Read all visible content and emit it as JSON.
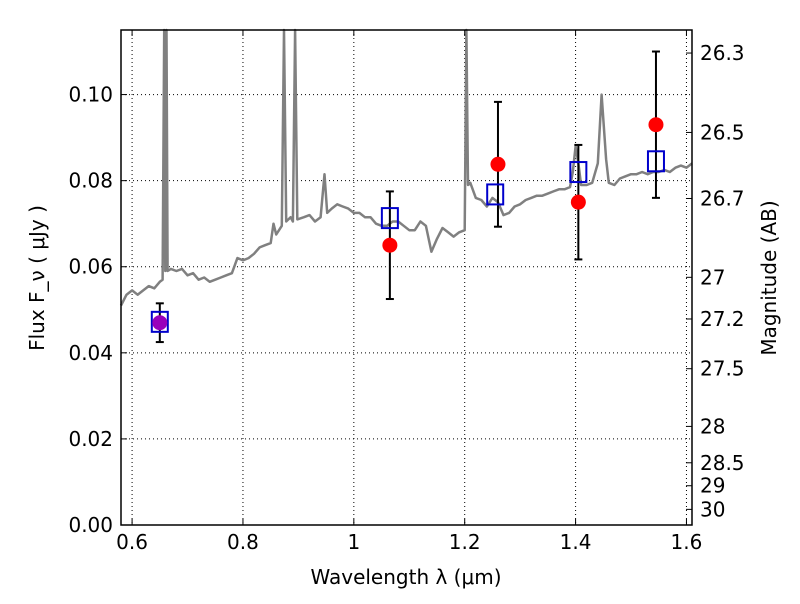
{
  "chart_data": {
    "type": "scatter",
    "xlabel": "Wavelength  λ (μm)",
    "ylabel": "Flux  F_ν  ( μJy )",
    "ylabel_right": "Magnitude (AB)",
    "xlim": [
      0.58,
      1.61
    ],
    "ylim": [
      0.0,
      0.115
    ],
    "x_ticks": [
      0.6,
      0.8,
      1.0,
      1.2,
      1.4,
      1.6
    ],
    "x_tick_labels": [
      "0.6",
      "0.8",
      "1",
      "1.2",
      "1.4",
      "1.6"
    ],
    "y_ticks": [
      0.0,
      0.02,
      0.04,
      0.06,
      0.08,
      0.1
    ],
    "y_tick_labels": [
      "0.00",
      "0.02",
      "0.04",
      "0.06",
      "0.08",
      "0.10"
    ],
    "right_ticks": [
      26.3,
      26.5,
      26.7,
      27.0,
      27.2,
      27.5,
      28.0,
      28.5,
      29.0,
      30.0
    ],
    "right_tick_labels": [
      "26.3",
      "26.5",
      "26.7",
      "27",
      "27.2",
      "27.5",
      "28",
      "28.5",
      "29",
      "30"
    ],
    "grid": true,
    "colors": {
      "observed": "#ff0000",
      "model": "#0000cc",
      "highlight": "#9900bb",
      "spectrum": "#808080",
      "errorbar": "#000000"
    },
    "observed_points": [
      {
        "x": 0.65,
        "y": 0.047,
        "err": 0.0045
      },
      {
        "x": 1.065,
        "y": 0.065,
        "err": 0.0125
      },
      {
        "x": 1.26,
        "y": 0.0838,
        "err": 0.0145
      },
      {
        "x": 1.405,
        "y": 0.075,
        "err": 0.0133
      },
      {
        "x": 1.545,
        "y": 0.093,
        "err": 0.017
      }
    ],
    "model_points": [
      {
        "x": 0.65,
        "y": 0.0472
      },
      {
        "x": 1.065,
        "y": 0.0713
      },
      {
        "x": 1.255,
        "y": 0.0768
      },
      {
        "x": 1.405,
        "y": 0.082
      },
      {
        "x": 1.545,
        "y": 0.0845
      }
    ],
    "spectrum": [
      [
        0.58,
        0.051
      ],
      [
        0.59,
        0.0535
      ],
      [
        0.6,
        0.0545
      ],
      [
        0.61,
        0.0535
      ],
      [
        0.62,
        0.0545
      ],
      [
        0.63,
        0.0555
      ],
      [
        0.64,
        0.055
      ],
      [
        0.65,
        0.0565
      ],
      [
        0.655,
        0.057
      ],
      [
        0.658,
        0.115
      ],
      [
        0.66,
        0.059
      ],
      [
        0.662,
        0.115
      ],
      [
        0.664,
        0.059
      ],
      [
        0.67,
        0.0595
      ],
      [
        0.68,
        0.059
      ],
      [
        0.69,
        0.0595
      ],
      [
        0.7,
        0.058
      ],
      [
        0.71,
        0.0585
      ],
      [
        0.72,
        0.057
      ],
      [
        0.73,
        0.0575
      ],
      [
        0.74,
        0.0565
      ],
      [
        0.75,
        0.057
      ],
      [
        0.76,
        0.0575
      ],
      [
        0.77,
        0.058
      ],
      [
        0.78,
        0.0585
      ],
      [
        0.79,
        0.062
      ],
      [
        0.8,
        0.0615
      ],
      [
        0.81,
        0.062
      ],
      [
        0.82,
        0.063
      ],
      [
        0.83,
        0.0645
      ],
      [
        0.84,
        0.065
      ],
      [
        0.85,
        0.0655
      ],
      [
        0.855,
        0.07
      ],
      [
        0.86,
        0.0675
      ],
      [
        0.865,
        0.0685
      ],
      [
        0.87,
        0.0695
      ],
      [
        0.874,
        0.115
      ],
      [
        0.878,
        0.0705
      ],
      [
        0.882,
        0.071
      ],
      [
        0.886,
        0.0715
      ],
      [
        0.89,
        0.0705
      ],
      [
        0.894,
        0.115
      ],
      [
        0.898,
        0.071
      ],
      [
        0.91,
        0.0715
      ],
      [
        0.92,
        0.072
      ],
      [
        0.93,
        0.0705
      ],
      [
        0.94,
        0.0715
      ],
      [
        0.947,
        0.0815
      ],
      [
        0.952,
        0.0725
      ],
      [
        0.96,
        0.0735
      ],
      [
        0.97,
        0.0745
      ],
      [
        0.98,
        0.074
      ],
      [
        0.99,
        0.0735
      ],
      [
        1.0,
        0.0725
      ],
      [
        1.01,
        0.0725
      ],
      [
        1.02,
        0.0715
      ],
      [
        1.03,
        0.0715
      ],
      [
        1.04,
        0.07
      ],
      [
        1.05,
        0.0695
      ],
      [
        1.06,
        0.0695
      ],
      [
        1.07,
        0.0705
      ],
      [
        1.08,
        0.0705
      ],
      [
        1.09,
        0.0695
      ],
      [
        1.1,
        0.0685
      ],
      [
        1.11,
        0.0685
      ],
      [
        1.12,
        0.0705
      ],
      [
        1.13,
        0.0695
      ],
      [
        1.14,
        0.0635
      ],
      [
        1.15,
        0.0665
      ],
      [
        1.16,
        0.069
      ],
      [
        1.17,
        0.068
      ],
      [
        1.18,
        0.067
      ],
      [
        1.19,
        0.068
      ],
      [
        1.2,
        0.0685
      ],
      [
        1.203,
        0.115
      ],
      [
        1.206,
        0.079
      ],
      [
        1.21,
        0.0795
      ],
      [
        1.22,
        0.076
      ],
      [
        1.23,
        0.0755
      ],
      [
        1.24,
        0.074
      ],
      [
        1.25,
        0.076
      ],
      [
        1.26,
        0.075
      ],
      [
        1.27,
        0.072
      ],
      [
        1.28,
        0.0725
      ],
      [
        1.29,
        0.074
      ],
      [
        1.3,
        0.0745
      ],
      [
        1.31,
        0.0755
      ],
      [
        1.32,
        0.076
      ],
      [
        1.33,
        0.0765
      ],
      [
        1.34,
        0.0765
      ],
      [
        1.35,
        0.077
      ],
      [
        1.36,
        0.0775
      ],
      [
        1.37,
        0.078
      ],
      [
        1.38,
        0.078
      ],
      [
        1.39,
        0.0785
      ],
      [
        1.395,
        0.082
      ],
      [
        1.4,
        0.088
      ],
      [
        1.405,
        0.084
      ],
      [
        1.41,
        0.079
      ],
      [
        1.42,
        0.079
      ],
      [
        1.43,
        0.0795
      ],
      [
        1.44,
        0.084
      ],
      [
        1.447,
        0.1
      ],
      [
        1.455,
        0.085
      ],
      [
        1.46,
        0.0795
      ],
      [
        1.47,
        0.079
      ],
      [
        1.48,
        0.0805
      ],
      [
        1.49,
        0.081
      ],
      [
        1.5,
        0.0815
      ],
      [
        1.51,
        0.0815
      ],
      [
        1.52,
        0.082
      ],
      [
        1.53,
        0.0815
      ],
      [
        1.54,
        0.082
      ],
      [
        1.55,
        0.082
      ],
      [
        1.56,
        0.0825
      ],
      [
        1.57,
        0.082
      ],
      [
        1.58,
        0.083
      ],
      [
        1.59,
        0.0835
      ],
      [
        1.6,
        0.083
      ],
      [
        1.61,
        0.084
      ]
    ]
  }
}
